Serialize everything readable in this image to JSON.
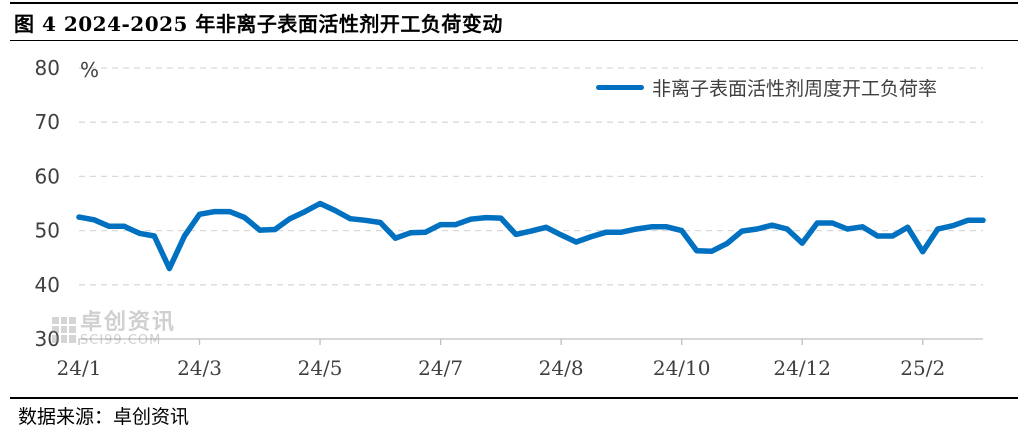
{
  "header": {
    "title": "图 4 2024-2025 年非离子表面活性剂开工负荷变动"
  },
  "footer": {
    "source": "数据来源：卓创资讯"
  },
  "watermark": {
    "cn": "卓创资讯",
    "en": "SCI99.COM"
  },
  "colors": {
    "series": "#0070C0",
    "grid": "#d9d9d9",
    "axis_text": "#404040"
  },
  "chart_data": {
    "type": "line",
    "title": "",
    "ylabel": "%",
    "ylim": [
      30,
      80
    ],
    "yticks": [
      30,
      40,
      50,
      60,
      70,
      80
    ],
    "grid": "horizontal-dashed",
    "legend_position": "top-right",
    "xtick_labels": [
      {
        "label": "24/1",
        "index": 0
      },
      {
        "label": "24/3",
        "index": 8
      },
      {
        "label": "24/5",
        "index": 16
      },
      {
        "label": "24/7",
        "index": 24
      },
      {
        "label": "24/8",
        "index": 32
      },
      {
        "label": "24/10",
        "index": 40
      },
      {
        "label": "24/12",
        "index": 48
      },
      {
        "label": "25/2",
        "index": 56
      }
    ],
    "series": [
      {
        "name": "非离子表面活性剂周度开工负荷率",
        "values": [
          52.5,
          52,
          50.8,
          50.8,
          49.5,
          49,
          43,
          49,
          53,
          53.5,
          53.5,
          52.4,
          50.1,
          50.2,
          52.2,
          53.5,
          55,
          53.7,
          52.2,
          51.9,
          51.5,
          48.6,
          49.6,
          49.7,
          51.1,
          51.1,
          52.1,
          52.4,
          52.3,
          49.3,
          49.9,
          50.6,
          49.2,
          47.9,
          48.9,
          49.7,
          49.7,
          50.3,
          50.7,
          50.7,
          50,
          46.3,
          46.2,
          47.6,
          49.9,
          50.3,
          51,
          50.3,
          47.7,
          51.4,
          51.4,
          50.3,
          50.7,
          49,
          49,
          50.6,
          46.1,
          50.3,
          50.9,
          51.9,
          51.9
        ]
      }
    ]
  }
}
